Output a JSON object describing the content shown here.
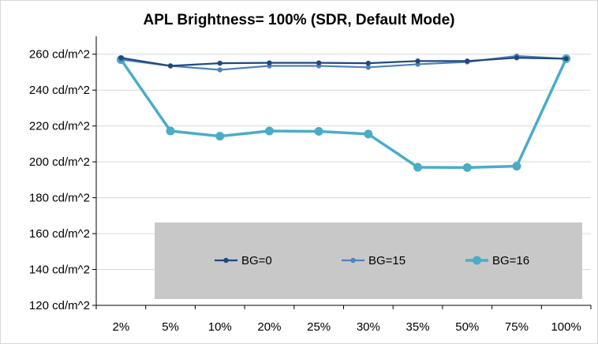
{
  "chart_data": {
    "type": "line",
    "title": "APL Brightness= 100% (SDR, Default Mode)",
    "xlabel": "",
    "ylabel": "",
    "categories": [
      "2%",
      "5%",
      "10%",
      "20%",
      "25%",
      "30%",
      "35%",
      "50%",
      "75%",
      "100%"
    ],
    "ylim": [
      120,
      270
    ],
    "yticks": [
      120,
      140,
      160,
      180,
      200,
      220,
      240,
      260
    ],
    "ytick_labels": [
      "120 cd/m^2",
      "140 cd/m^2",
      "160 cd/m^2",
      "180 cd/m^2",
      "200 cd/m^2",
      "220 cd/m^2",
      "240 cd/m^2",
      "260 cd/m^2"
    ],
    "grid": "horizontal",
    "legend_position": "bottom-center, inside plot on grey box",
    "series": [
      {
        "name": "BG=0",
        "color": "#1f497d",
        "values": [
          258,
          253.5,
          255,
          255.2,
          255.2,
          255,
          256.2,
          256.2,
          258,
          257.5
        ]
      },
      {
        "name": "BG=15",
        "color": "#4f81bd",
        "values": [
          257,
          253.5,
          251.3,
          253.5,
          253.5,
          252.7,
          254.4,
          255.7,
          259,
          257.5
        ]
      },
      {
        "name": "BG=16",
        "color": "#4bacc6",
        "values": [
          257,
          217.2,
          214.3,
          217.2,
          217,
          215.5,
          197,
          196.8,
          197.6,
          257.5
        ]
      }
    ],
    "legend_box_color": "#c8c8c8"
  }
}
